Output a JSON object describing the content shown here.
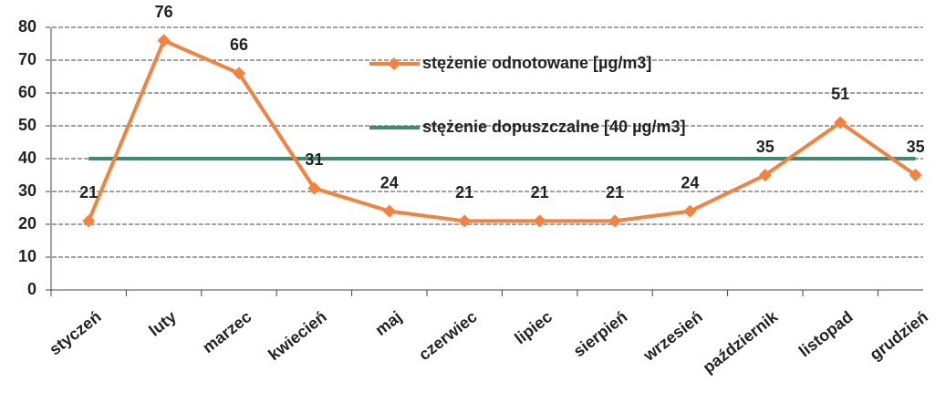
{
  "chart_data": {
    "type": "line",
    "categories": [
      "styczeń",
      "luty",
      "marzec",
      "kwiecień",
      "maj",
      "czerwiec",
      "lipiec",
      "sierpień",
      "wrzesień",
      "październik",
      "listopad",
      "grudzień"
    ],
    "series": [
      {
        "name": "stężenie odnotowane [µg/m3]",
        "color": "#f4823c",
        "values": [
          21,
          76,
          66,
          31,
          24,
          21,
          21,
          21,
          24,
          35,
          51,
          35
        ]
      },
      {
        "name": "stężenie dopuszczalne [40 µg/m3]",
        "color": "#3d8c6e",
        "values": [
          40,
          40,
          40,
          40,
          40,
          40,
          40,
          40,
          40,
          40,
          40,
          40
        ]
      }
    ],
    "ylim": [
      0,
      80
    ],
    "yticks": [
      0,
      10,
      20,
      30,
      40,
      50,
      60,
      70,
      80
    ],
    "grid": true
  }
}
